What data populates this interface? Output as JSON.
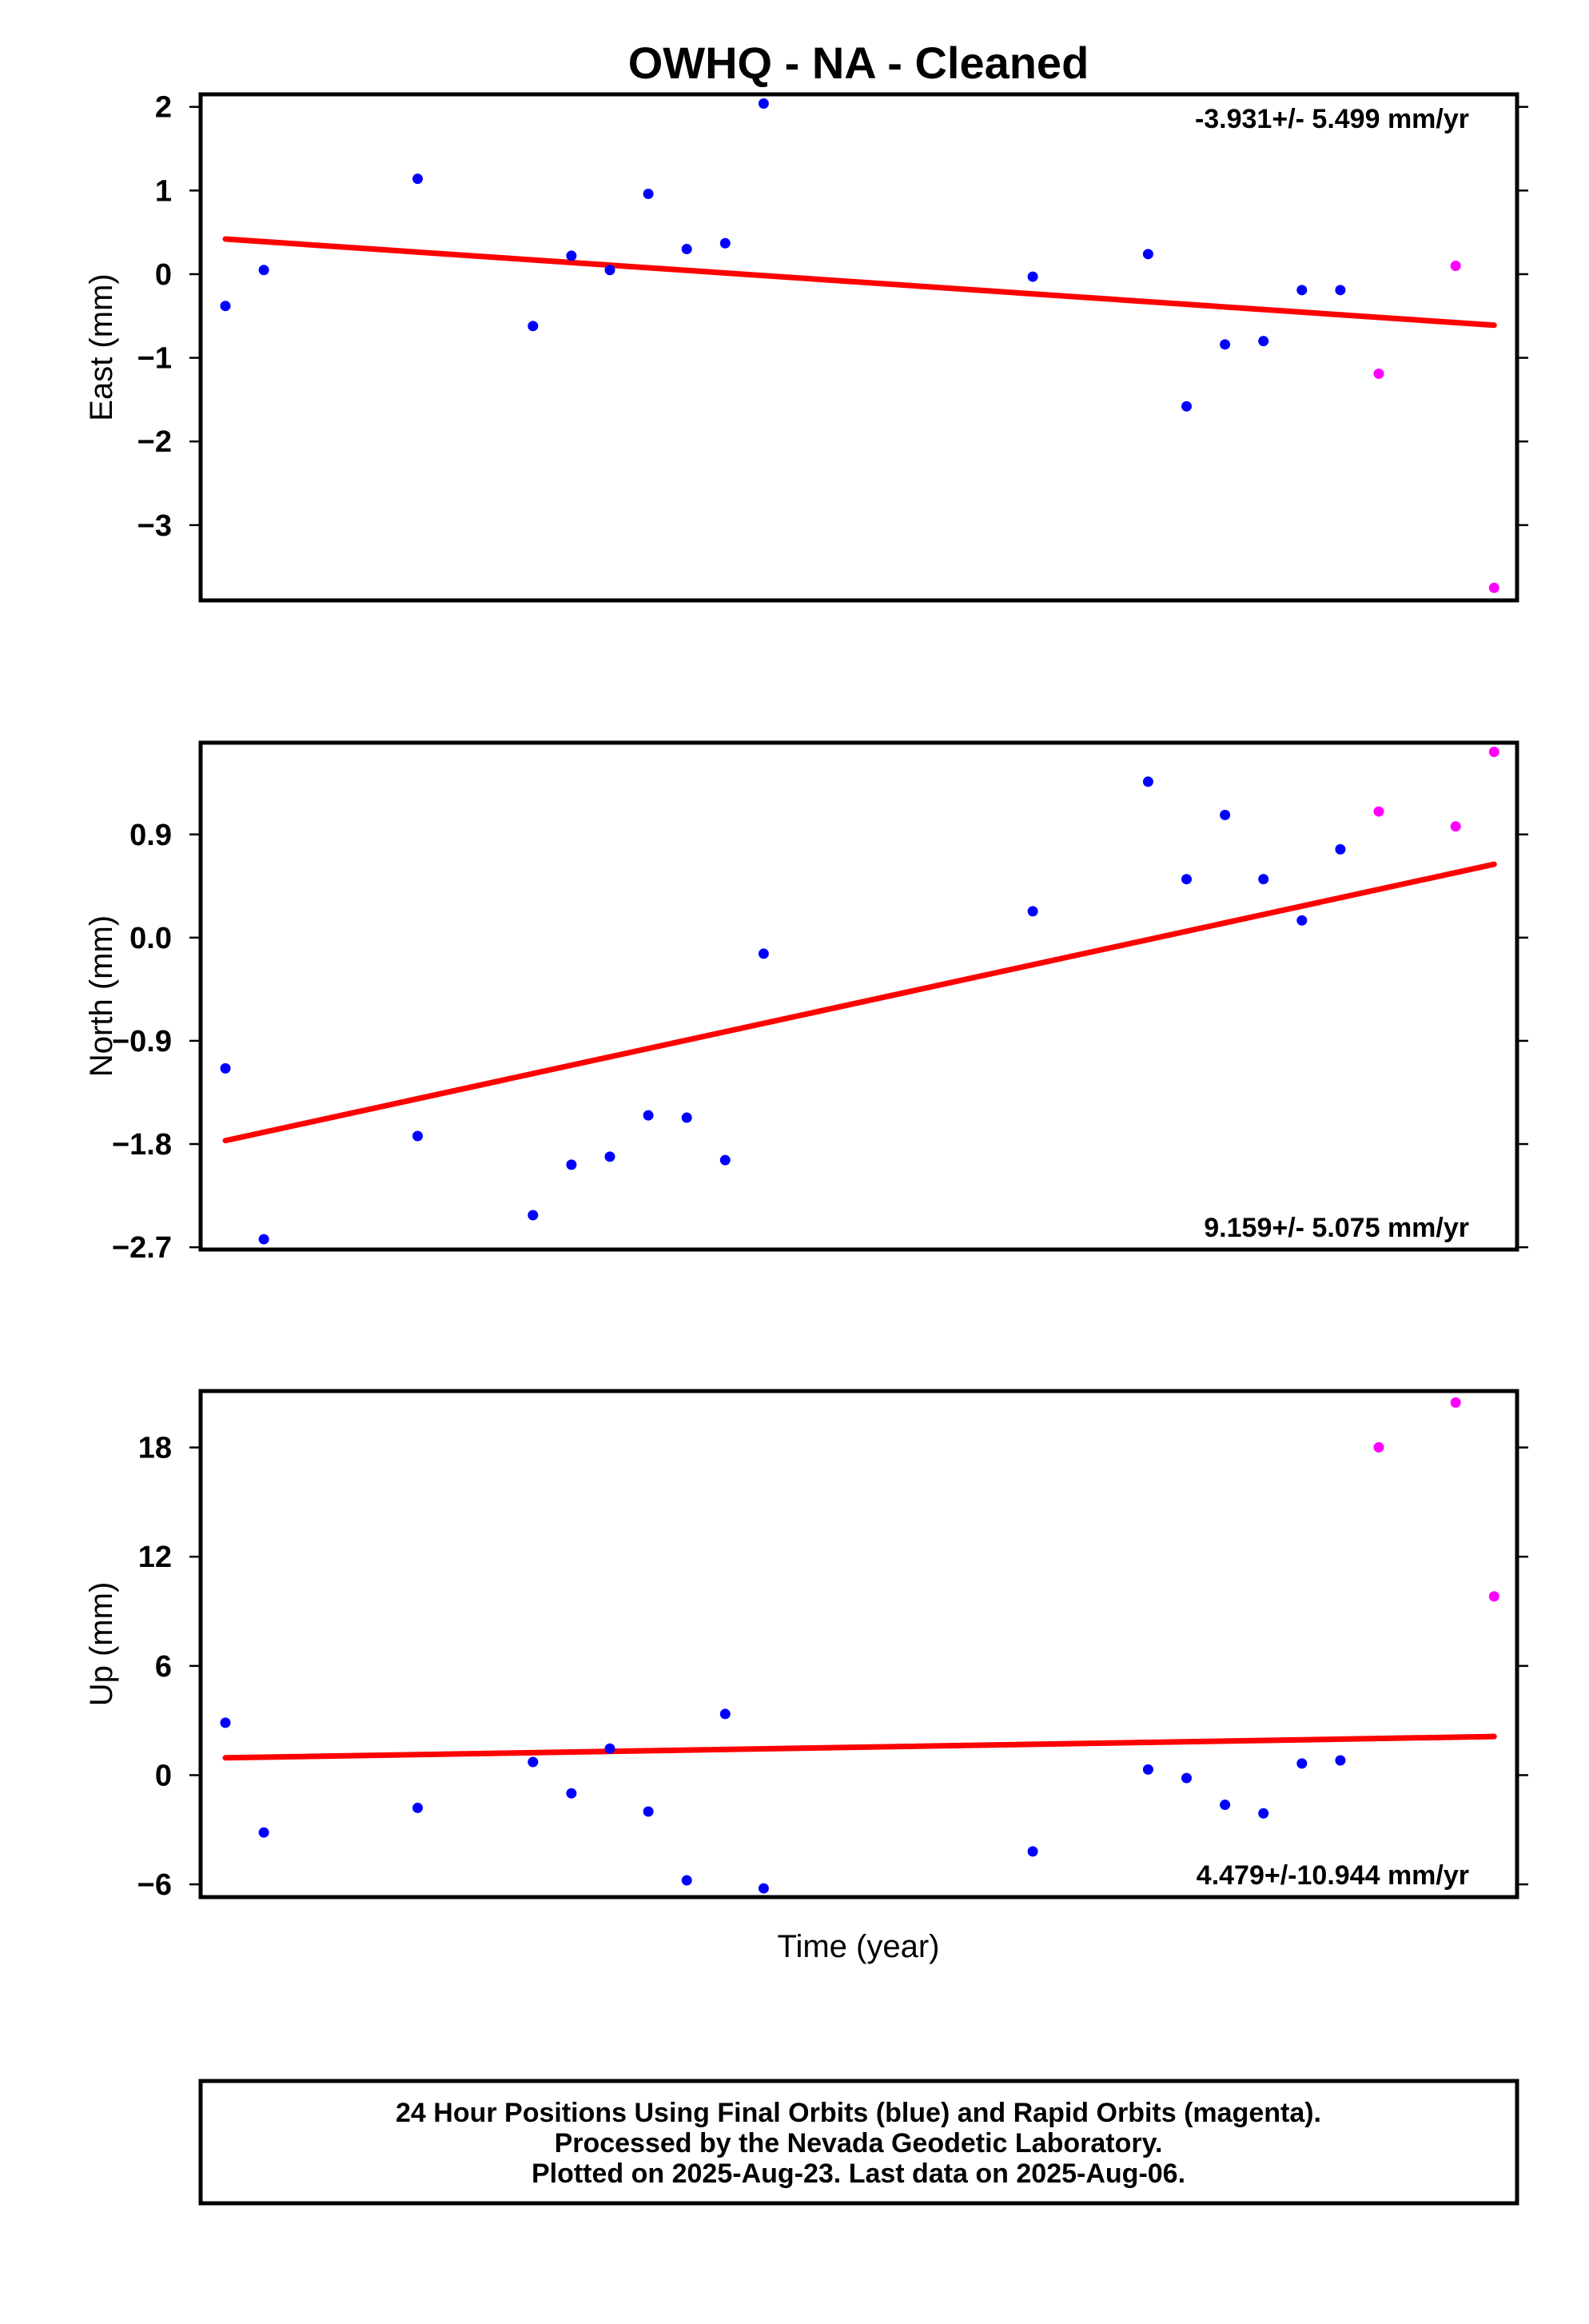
{
  "chart_data": {
    "type": "scatter",
    "title": "OWHQ  - NA - Cleaned",
    "xlabel": "Time (year)",
    "footer": [
      "24 Hour Positions Using Final Orbits (blue) and Rapid Orbits (magenta).",
      "Processed by the Nevada Geodetic Laboratory.",
      "Plotted on 2025-Aug-23. Last data on 2025-Aug-06."
    ],
    "colors": {
      "final": "#0000ff",
      "rapid": "#ff00ff",
      "trend": "#ff0000",
      "frame": "#000000"
    },
    "x_index": [
      1,
      2,
      6,
      9,
      10,
      11,
      12,
      13,
      14,
      15,
      22,
      25,
      26,
      27,
      28,
      29,
      30,
      31,
      33,
      34
    ],
    "orbit_type": [
      "final",
      "final",
      "final",
      "final",
      "final",
      "final",
      "final",
      "final",
      "final",
      "final",
      "final",
      "final",
      "final",
      "final",
      "final",
      "final",
      "final",
      "rapid",
      "rapid",
      "rapid"
    ],
    "panels": [
      {
        "ylabel": "East (mm)",
        "rate_label": "-3.931+/- 5.499 mm/yr",
        "rate_position": "top-right",
        "yticks": [
          "2",
          "1",
          "0",
          "−1",
          "−2",
          "−3"
        ],
        "ytick_values": [
          2,
          1,
          0,
          -1,
          -2,
          -3
        ],
        "ylim": [
          -3.9,
          2.15
        ],
        "values": [
          -0.38,
          0.05,
          1.14,
          -0.62,
          0.22,
          0.05,
          0.96,
          0.3,
          0.37,
          2.04,
          -0.03,
          0.24,
          -1.58,
          -0.84,
          -0.8,
          -0.19,
          -0.19,
          -1.19,
          0.1,
          -3.75
        ],
        "trend": [
          0.42,
          -0.61
        ]
      },
      {
        "ylabel": "North (mm)",
        "rate_label": "9.159+/- 5.075 mm/yr",
        "rate_position": "bottom-right",
        "yticks": [
          "0.9",
          "0.0",
          "−0.9",
          "−1.8",
          "−2.7"
        ],
        "ytick_values": [
          0.9,
          0,
          -0.9,
          -1.8,
          -2.7
        ],
        "ylim": [
          -2.72,
          1.7
        ],
        "values": [
          -1.14,
          -2.63,
          -1.73,
          -2.42,
          -1.98,
          -1.91,
          -1.55,
          -1.57,
          -1.94,
          -0.14,
          0.23,
          1.36,
          0.51,
          1.07,
          0.51,
          0.15,
          0.77,
          1.1,
          0.97,
          1.62
        ],
        "trend": [
          -1.77,
          0.64
        ]
      },
      {
        "ylabel": "Up (mm)",
        "rate_label": "4.479+/-10.944 mm/yr",
        "rate_position": "bottom-right",
        "yticks": [
          "18",
          "12",
          "6",
          "0",
          "−6"
        ],
        "ytick_values": [
          18,
          12,
          6,
          0,
          -6
        ],
        "ylim": [
          -6.7,
          21.1
        ],
        "values": [
          2.88,
          -3.15,
          -1.8,
          0.72,
          -1.0,
          1.46,
          -2.0,
          -5.78,
          3.36,
          -6.22,
          -4.19,
          0.31,
          -0.16,
          -1.63,
          -2.1,
          0.64,
          0.81,
          18.01,
          20.47,
          9.82
        ],
        "trend": [
          0.95,
          2.12
        ]
      }
    ]
  }
}
